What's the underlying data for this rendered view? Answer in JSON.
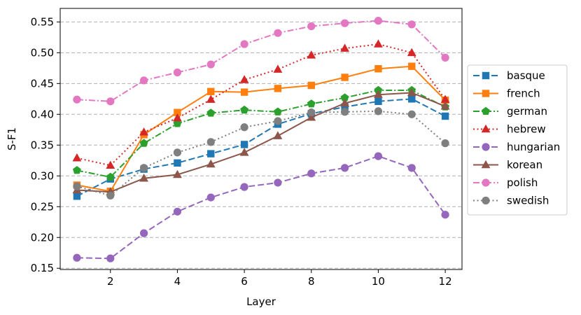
{
  "chart_data": {
    "type": "line",
    "xlabel": "Layer",
    "ylabel": "S-F1",
    "x": [
      1,
      2,
      3,
      4,
      5,
      6,
      7,
      8,
      9,
      10,
      11,
      12
    ],
    "xlim": [
      0.5,
      12.5
    ],
    "ylim": [
      0.148,
      0.572
    ],
    "xticks": [
      2,
      4,
      6,
      8,
      10,
      12
    ],
    "yticks": [
      0.15,
      0.2,
      0.25,
      0.3,
      0.35,
      0.4,
      0.45,
      0.5,
      0.55
    ],
    "ytick_labels": [
      "0.15",
      "0.20",
      "0.25",
      "0.30",
      "0.35",
      "0.40",
      "0.45",
      "0.50",
      "0.55"
    ],
    "grid": "horizontal dashed",
    "legend_position": "right, outside plot",
    "series": [
      {
        "name": "basque",
        "color": "#1f77b4",
        "marker": "square",
        "linestyle": "dashed",
        "values": [
          0.267,
          0.295,
          0.311,
          0.321,
          0.336,
          0.351,
          0.384,
          0.401,
          0.412,
          0.421,
          0.425,
          0.397
        ]
      },
      {
        "name": "french",
        "color": "#ff7f0e",
        "marker": "square",
        "linestyle": "solid",
        "values": [
          0.285,
          0.275,
          0.367,
          0.403,
          0.437,
          0.436,
          0.442,
          0.447,
          0.46,
          0.474,
          0.478,
          0.423
        ]
      },
      {
        "name": "german",
        "color": "#2ca02c",
        "marker": "pentagon",
        "linestyle": "dashdot",
        "values": [
          0.309,
          0.298,
          0.353,
          0.385,
          0.402,
          0.407,
          0.404,
          0.417,
          0.427,
          0.439,
          0.439,
          0.412
        ]
      },
      {
        "name": "hebrew",
        "color": "#d62728",
        "marker": "triangle",
        "linestyle": "dotted",
        "values": [
          0.329,
          0.317,
          0.371,
          0.394,
          0.424,
          0.456,
          0.473,
          0.496,
          0.507,
          0.514,
          0.5,
          0.424
        ]
      },
      {
        "name": "hungarian",
        "color": "#9467bd",
        "marker": "circle",
        "linestyle": "dashed",
        "values": [
          0.167,
          0.166,
          0.207,
          0.242,
          0.265,
          0.282,
          0.289,
          0.304,
          0.313,
          0.332,
          0.313,
          0.237
        ]
      },
      {
        "name": "korean",
        "color": "#8c564b",
        "marker": "triangle",
        "linestyle": "solid",
        "values": [
          0.277,
          0.274,
          0.296,
          0.302,
          0.319,
          0.338,
          0.365,
          0.395,
          0.418,
          0.432,
          0.435,
          0.413
        ]
      },
      {
        "name": "polish",
        "color": "#e377c2",
        "marker": "circle",
        "linestyle": "dashdot",
        "values": [
          0.424,
          0.421,
          0.455,
          0.468,
          0.481,
          0.514,
          0.532,
          0.543,
          0.548,
          0.552,
          0.546,
          0.492
        ]
      },
      {
        "name": "swedish",
        "color": "#7f7f7f",
        "marker": "circle",
        "linestyle": "dotted",
        "values": [
          0.283,
          0.268,
          0.313,
          0.338,
          0.355,
          0.379,
          0.389,
          0.403,
          0.404,
          0.405,
          0.4,
          0.353
        ]
      }
    ]
  }
}
